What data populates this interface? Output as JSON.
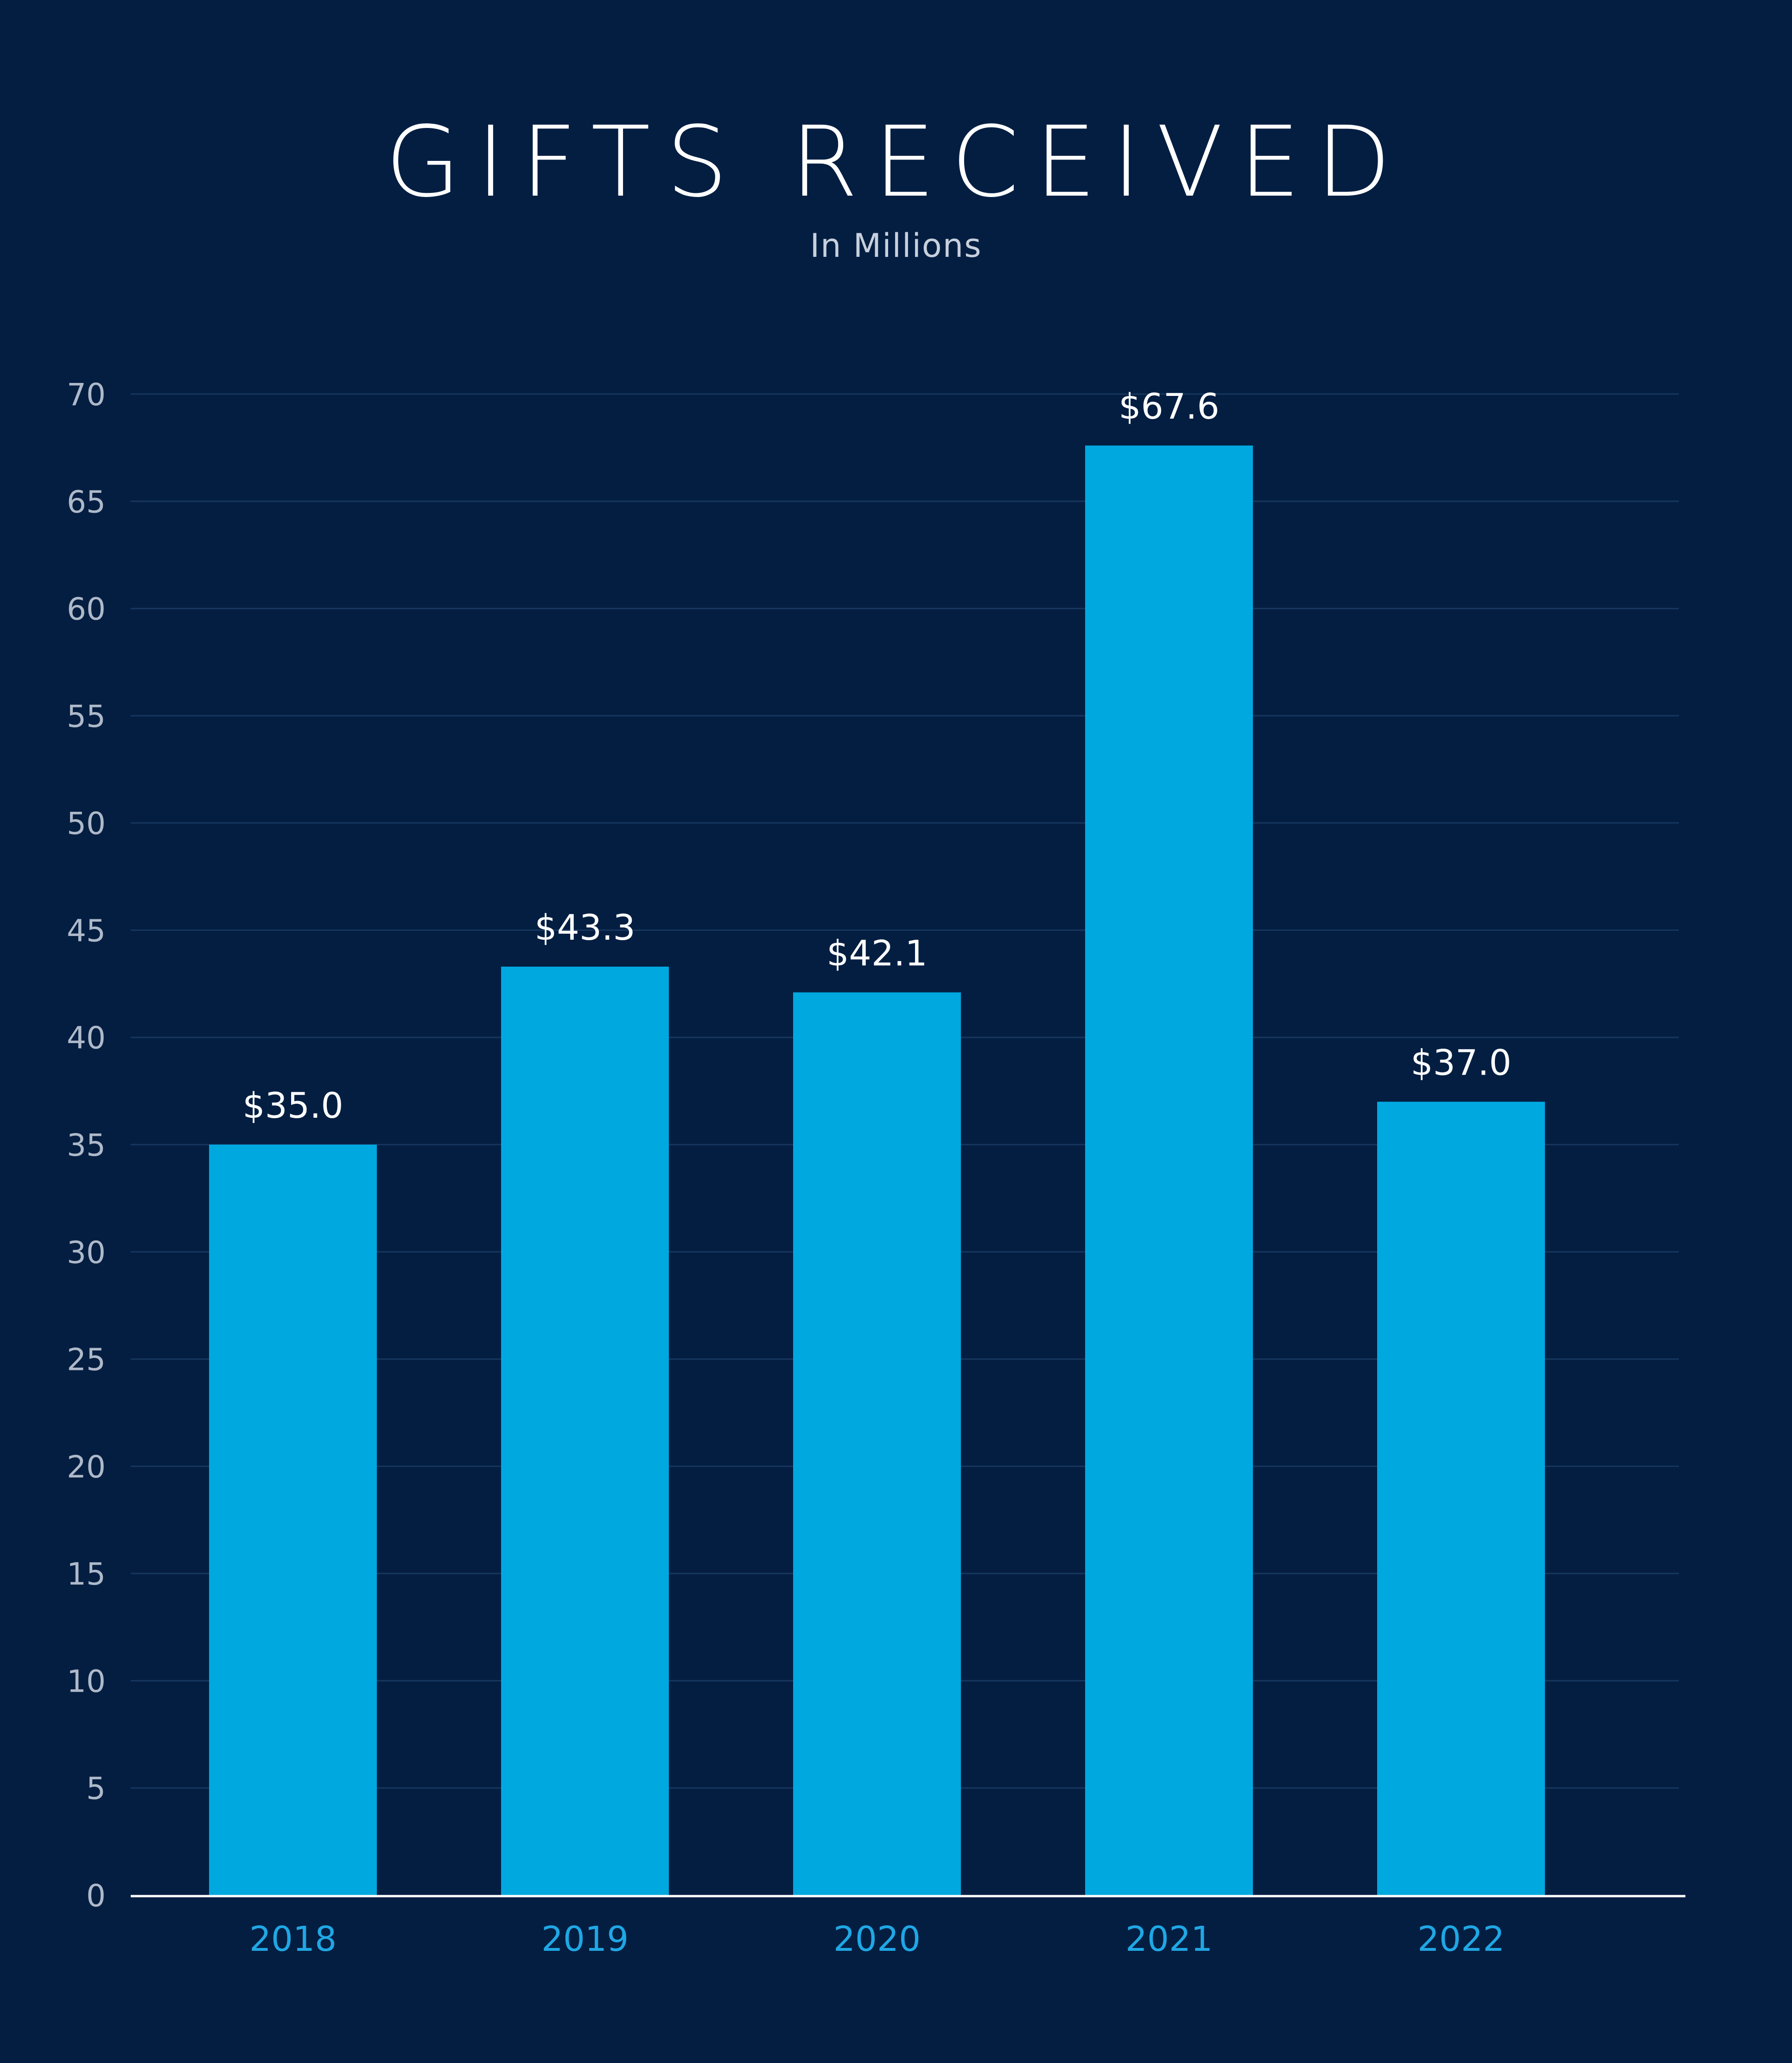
{
  "chart_data": {
    "type": "bar",
    "title": "GIFTS RECEIVED",
    "subtitle": "In Millions",
    "categories": [
      "2018",
      "2019",
      "2020",
      "2021",
      "2022"
    ],
    "values": [
      35.0,
      43.3,
      42.1,
      67.6,
      37.0
    ],
    "data_labels": [
      "$35.0",
      "$43.3",
      "$42.1",
      "$67.6",
      "$37.0"
    ],
    "y_ticks": [
      "0",
      "5",
      "10",
      "15",
      "20",
      "25",
      "30",
      "35",
      "40",
      "45",
      "50",
      "55",
      "60",
      "65",
      "70"
    ],
    "ylim": [
      0,
      70
    ],
    "grid": true,
    "legend": "none",
    "colors": {
      "background": "#041e42",
      "bar": "#00a8e0",
      "gridline": "#16375e",
      "axis": "#ffffff",
      "category_label": "#1fa7e4",
      "data_label": "#ffffff",
      "tick_label": "#aeb9c9"
    }
  }
}
